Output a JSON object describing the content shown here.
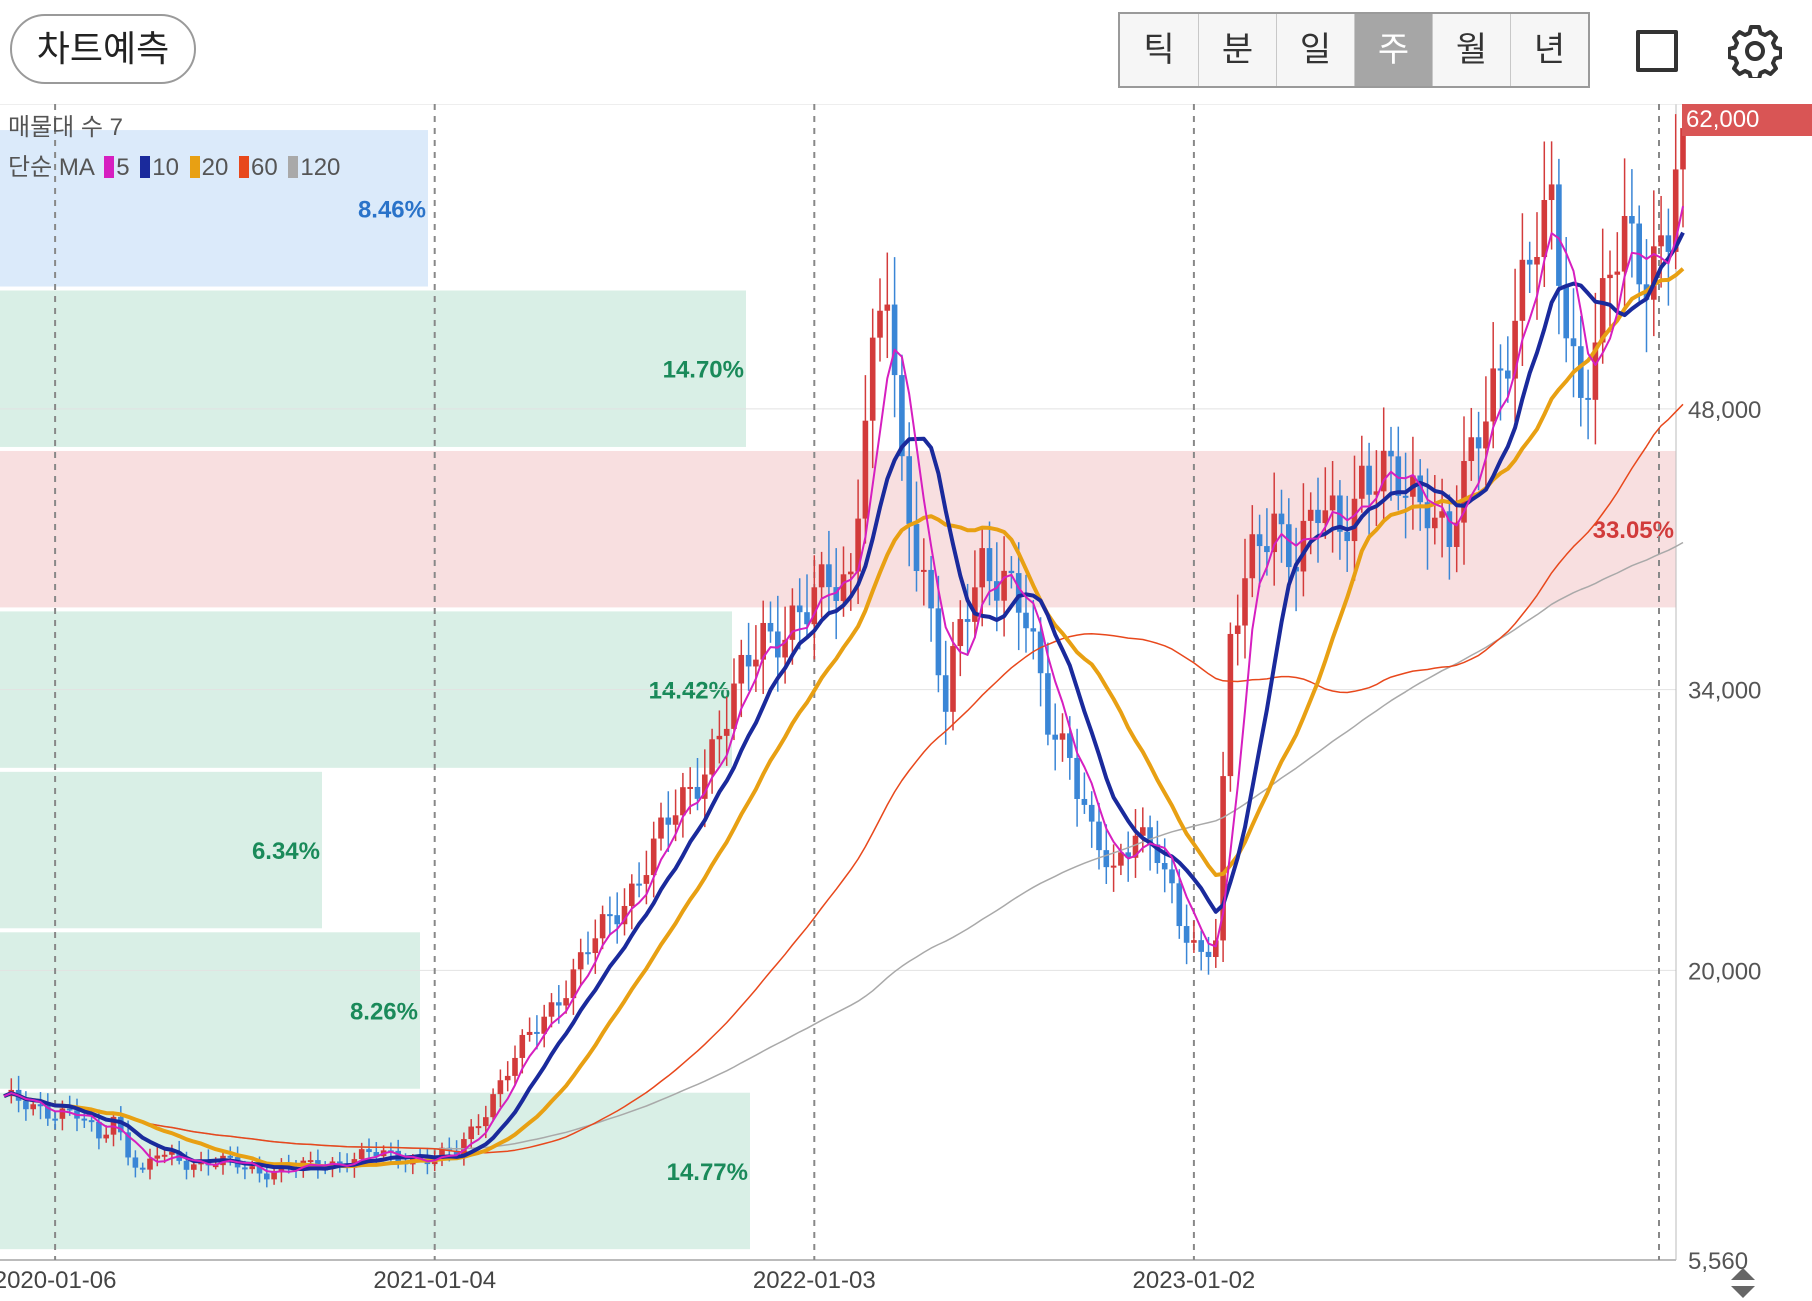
{
  "header": {
    "predict_button": "차트예측",
    "period_tabs": [
      "틱",
      "분",
      "일",
      "주",
      "월",
      "년"
    ],
    "active_tab": "주",
    "icons": [
      "square-icon",
      "gear-icon"
    ]
  },
  "legend": {
    "volume_profile_label": "매물대 수 7",
    "ma_label": "단순 MA",
    "ma_items": [
      {
        "label": "5",
        "color": "#d61fc0"
      },
      {
        "label": "10",
        "color": "#1a2a9c"
      },
      {
        "label": "20",
        "color": "#e8a013"
      },
      {
        "label": "60",
        "color": "#e8481c"
      },
      {
        "label": "120",
        "color": "#a9a9a9"
      }
    ]
  },
  "current_price_badge": "62,000",
  "colors": {
    "up": "#d33b3b",
    "down": "#3a86d6",
    "profile_green": "#d9efe6",
    "profile_red": "#f8dfe0",
    "profile_blue": "#dbeafa",
    "pct_green": "#1a8a5a",
    "pct_red": "#d13b3b",
    "pct_blue": "#2a73c9"
  },
  "chart_data": {
    "type": "candlestick",
    "y_scale": "linear",
    "ylim": [
      5560,
      63200
    ],
    "y_ticks": [
      "62,000",
      "48,000",
      "34,000",
      "20,000",
      "5,560"
    ],
    "y_tick_values": [
      62000,
      48000,
      34000,
      20000,
      5560
    ],
    "x_ticks": [
      "2020-01-06",
      "2021-01-04",
      "2022-01-03",
      "2023-01-02"
    ],
    "x_tick_weeks": [
      7,
      59,
      111,
      163
    ],
    "total_weeks": 230,
    "volume_profile": [
      {
        "low": 54000,
        "high": 62000,
        "percent": "8.46%",
        "color": "blue"
      },
      {
        "low": 46000,
        "high": 54000,
        "percent": "14.70%",
        "color": "green"
      },
      {
        "low": 38000,
        "high": 46000,
        "percent": "33.05%",
        "color": "red"
      },
      {
        "low": 30000,
        "high": 38000,
        "percent": "14.42%",
        "color": "green"
      },
      {
        "low": 22000,
        "high": 30000,
        "percent": "6.34%",
        "color": "green"
      },
      {
        "low": 14000,
        "high": 22000,
        "percent": "8.26%",
        "color": "green"
      },
      {
        "low": 6000,
        "high": 14000,
        "percent": "14.77%",
        "color": "green"
      }
    ],
    "price_anchors": [
      [
        0,
        13500
      ],
      [
        5,
        13200
      ],
      [
        10,
        12700
      ],
      [
        13,
        11600
      ],
      [
        15,
        12800
      ],
      [
        17,
        11000
      ],
      [
        19,
        9800
      ],
      [
        21,
        10800
      ],
      [
        25,
        10500
      ],
      [
        30,
        10400
      ],
      [
        35,
        10000
      ],
      [
        42,
        10200
      ],
      [
        50,
        10800
      ],
      [
        55,
        10700
      ],
      [
        59,
        10600
      ],
      [
        62,
        10900
      ],
      [
        66,
        13200
      ],
      [
        70,
        15500
      ],
      [
        74,
        17800
      ],
      [
        78,
        19800
      ],
      [
        82,
        22000
      ],
      [
        86,
        24200
      ],
      [
        92,
        27800
      ],
      [
        99,
        32500
      ],
      [
        104,
        37000
      ],
      [
        110,
        37500
      ],
      [
        113,
        39500
      ],
      [
        116,
        40000
      ],
      [
        118,
        48000
      ],
      [
        121,
        53500
      ],
      [
        123,
        44500
      ],
      [
        126,
        40200
      ],
      [
        129,
        33000
      ],
      [
        131,
        36500
      ],
      [
        134,
        40500
      ],
      [
        137,
        40000
      ],
      [
        140,
        37000
      ],
      [
        143,
        32500
      ],
      [
        146,
        31200
      ],
      [
        149,
        26500
      ],
      [
        152,
        24500
      ],
      [
        155,
        27500
      ],
      [
        158,
        26000
      ],
      [
        161,
        22000
      ],
      [
        164,
        20800
      ],
      [
        166,
        22200
      ],
      [
        168,
        36500
      ],
      [
        171,
        40000
      ],
      [
        174,
        42800
      ],
      [
        177,
        41000
      ],
      [
        180,
        42500
      ],
      [
        183,
        42000
      ],
      [
        186,
        45000
      ],
      [
        189,
        44500
      ],
      [
        192,
        43500
      ],
      [
        195,
        44000
      ],
      [
        198,
        41500
      ],
      [
        201,
        45000
      ],
      [
        204,
        49500
      ],
      [
        208,
        54000
      ],
      [
        212,
        57500
      ],
      [
        214,
        53000
      ],
      [
        216,
        49000
      ],
      [
        219,
        52500
      ],
      [
        222,
        56500
      ],
      [
        225,
        55500
      ],
      [
        228,
        57000
      ],
      [
        230,
        62000
      ]
    ]
  }
}
